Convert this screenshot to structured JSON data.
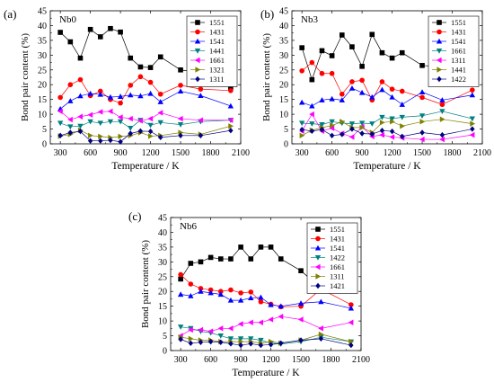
{
  "chart_data": [
    {
      "type": "line",
      "panel_label": "(a)",
      "title": "Nb0",
      "xlabel": "Temperature / K",
      "ylabel": "Bond pair content (%)",
      "xlim": [
        200,
        2100
      ],
      "ylim": [
        0,
        45
      ],
      "xticks": [
        300,
        600,
        900,
        1200,
        1500,
        1800,
        2100
      ],
      "yticks": [
        0,
        5,
        10,
        15,
        20,
        25,
        30,
        35,
        40,
        45
      ],
      "x": [
        300,
        400,
        500,
        600,
        700,
        800,
        900,
        1000,
        1100,
        1200,
        1300,
        1500,
        1700,
        2000
      ],
      "legend_position": "top-right",
      "series": [
        {
          "name": "1551",
          "color": "#000000",
          "marker": "square",
          "values": [
            37.7,
            34.5,
            29,
            38.7,
            36.2,
            39,
            37.8,
            29,
            26,
            25.8,
            29.4,
            25,
            24,
            19
          ]
        },
        {
          "name": "1431",
          "color": "#ff0000",
          "marker": "circle",
          "values": [
            15.7,
            20,
            21.7,
            16.3,
            17.8,
            15,
            13.8,
            19.8,
            22.7,
            20.8,
            16.8,
            19.8,
            18.5,
            18
          ]
        },
        {
          "name": "1541",
          "color": "#0000ff",
          "marker": "triangle-up",
          "values": [
            11.8,
            14.5,
            16.2,
            17,
            16.7,
            15.8,
            16,
            16.5,
            16.2,
            17,
            14.2,
            17.8,
            16.3,
            12.8
          ]
        },
        {
          "name": "1441",
          "color": "#008080",
          "marker": "triangle-down",
          "values": [
            7,
            5.8,
            6,
            7.5,
            7,
            7.5,
            7.5,
            5.3,
            8,
            6.3,
            7.2,
            6.5,
            7.5,
            8
          ]
        },
        {
          "name": "1661",
          "color": "#ff00ff",
          "marker": "triangle-left",
          "values": [
            11,
            8.2,
            9.2,
            9.8,
            10.8,
            11,
            9,
            8.5,
            7.8,
            8.5,
            10.5,
            8.5,
            8,
            8
          ]
        },
        {
          "name": "1321",
          "color": "#808000",
          "marker": "triangle-right",
          "values": [
            2.6,
            3.2,
            4.6,
            2.8,
            2.5,
            2.1,
            2.5,
            2.8,
            3.8,
            2.6,
            2.8,
            3.8,
            3.2,
            6
          ]
        },
        {
          "name": "1311",
          "color": "#000080",
          "marker": "diamond",
          "values": [
            2.8,
            3.8,
            4.2,
            1,
            1,
            1.2,
            0.7,
            3.5,
            4.3,
            4.2,
            2.2,
            2.8,
            2.8,
            4.5
          ]
        }
      ]
    },
    {
      "type": "line",
      "panel_label": "(b)",
      "title": "Nb3",
      "xlabel": "Temperature / K",
      "ylabel": "Bond pair content (%)",
      "xlim": [
        200,
        2100
      ],
      "ylim": [
        0,
        45
      ],
      "xticks": [
        300,
        600,
        900,
        1200,
        1500,
        1800,
        2100
      ],
      "yticks": [
        0,
        5,
        10,
        15,
        20,
        25,
        30,
        35,
        40,
        45
      ],
      "x": [
        300,
        400,
        500,
        600,
        700,
        800,
        900,
        1000,
        1100,
        1200,
        1300,
        1500,
        1700,
        2000
      ],
      "legend_position": "top-right",
      "series": [
        {
          "name": "1551",
          "color": "#000000",
          "marker": "square",
          "values": [
            32.5,
            21.7,
            31.5,
            29.8,
            36.8,
            32.8,
            26.2,
            37,
            30.8,
            29,
            30.8,
            26.5,
            26,
            20.8
          ]
        },
        {
          "name": "1431",
          "color": "#ff0000",
          "marker": "circle",
          "values": [
            24.7,
            27.5,
            23.8,
            23.8,
            16.8,
            21,
            21.5,
            14.8,
            21,
            18.5,
            17.8,
            15.7,
            13.3,
            18.2
          ]
        },
        {
          "name": "1541",
          "color": "#0000ff",
          "marker": "triangle-up",
          "values": [
            14,
            12.8,
            14.8,
            15.2,
            14.8,
            18.8,
            17.3,
            15.8,
            18.3,
            15.8,
            13.3,
            17.5,
            14.8,
            16.5
          ]
        },
        {
          "name": "1661",
          "color": "#008080",
          "marker": "triangle-down",
          "values": [
            7,
            6.8,
            6.5,
            7.5,
            7,
            6.8,
            7,
            6.8,
            9,
            8.5,
            9,
            9.5,
            11,
            8.5
          ]
        },
        {
          "name": "1311",
          "color": "#ff00ff",
          "marker": "triangle-left",
          "values": [
            4.3,
            10,
            4.3,
            5.3,
            3.5,
            2.3,
            5.8,
            2.5,
            3,
            2.3,
            2,
            1.5,
            1.5,
            3
          ]
        },
        {
          "name": "1441",
          "color": "#808000",
          "marker": "triangle-right",
          "values": [
            2.8,
            4.6,
            5.5,
            6.2,
            7.5,
            5.5,
            5.5,
            3.8,
            7.2,
            7.5,
            6,
            7.5,
            8.3,
            6.8
          ]
        },
        {
          "name": "1422",
          "color": "#000080",
          "marker": "diamond",
          "values": [
            4.8,
            4.3,
            4.8,
            2.8,
            3.2,
            5,
            3.5,
            3.3,
            4.5,
            4.2,
            2.5,
            3.8,
            3,
            5
          ]
        }
      ]
    },
    {
      "type": "line",
      "panel_label": "(c)",
      "title": "Nb6",
      "xlabel": "Temperature / K",
      "ylabel": "Bond pair content (%)",
      "xlim": [
        200,
        2100
      ],
      "ylim": [
        0,
        45
      ],
      "xticks": [
        300,
        600,
        900,
        1200,
        1500,
        1800,
        2100
      ],
      "yticks": [
        0,
        5,
        10,
        15,
        20,
        25,
        30,
        35,
        40,
        45
      ],
      "x": [
        300,
        400,
        500,
        600,
        700,
        800,
        900,
        1000,
        1100,
        1200,
        1300,
        1500,
        1700,
        2000
      ],
      "legend_position": "top-right",
      "series": [
        {
          "name": "1551",
          "color": "#000000",
          "marker": "square",
          "values": [
            24.2,
            29.5,
            30,
            31.5,
            31,
            31,
            35,
            31,
            35,
            35,
            31,
            27,
            21,
            22
          ]
        },
        {
          "name": "1431",
          "color": "#ff0000",
          "marker": "circle",
          "values": [
            25.7,
            22.5,
            21,
            20.5,
            20,
            20.5,
            19.5,
            19.8,
            16.5,
            15.7,
            14.8,
            15,
            20.8,
            15.5
          ]
        },
        {
          "name": "1541",
          "color": "#0000ff",
          "marker": "triangle-up",
          "values": [
            19,
            18.5,
            20,
            19.5,
            19,
            17,
            17,
            17.8,
            18,
            15.5,
            15,
            16,
            16.5,
            14.3
          ]
        },
        {
          "name": "1422",
          "color": "#008080",
          "marker": "triangle-down",
          "values": [
            8,
            7.5,
            6.5,
            6,
            5,
            4,
            4,
            4,
            3.5,
            2.5,
            2.2,
            3,
            4.5,
            3
          ]
        },
        {
          "name": "1661",
          "color": "#ff00ff",
          "marker": "triangle-left",
          "values": [
            5,
            7,
            7,
            6.5,
            7.5,
            7.5,
            9,
            9.5,
            9.5,
            10.5,
            11.5,
            10.5,
            7.5,
            9.5
          ]
        },
        {
          "name": "1311",
          "color": "#808000",
          "marker": "triangle-right",
          "values": [
            4.5,
            4,
            3.5,
            3.5,
            3,
            3,
            3,
            3,
            2.5,
            3,
            2.5,
            3.5,
            5.5,
            3
          ]
        },
        {
          "name": "1421",
          "color": "#000080",
          "marker": "diamond",
          "values": [
            3.8,
            2.5,
            2.8,
            3,
            2.8,
            2.3,
            1.8,
            2.3,
            1.8,
            2,
            2.5,
            3.5,
            4,
            1.8
          ]
        }
      ]
    }
  ]
}
